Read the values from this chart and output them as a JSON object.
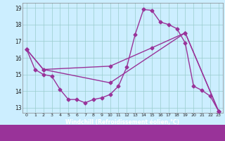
{
  "xlabel": "Windchill (Refroidissement éolien,°C)",
  "bg_color": "#cceeff",
  "line_color": "#993399",
  "grid_color": "#99cccc",
  "xlim": [
    -0.5,
    23.5
  ],
  "ylim": [
    12.7,
    19.3
  ],
  "yticks": [
    13,
    14,
    15,
    16,
    17,
    18,
    19
  ],
  "xticks": [
    0,
    1,
    2,
    3,
    4,
    5,
    6,
    7,
    8,
    9,
    10,
    11,
    12,
    13,
    14,
    15,
    16,
    17,
    18,
    19,
    20,
    21,
    22,
    23
  ],
  "line1_x": [
    0,
    1,
    2,
    3,
    4,
    5,
    6,
    7,
    8,
    9,
    10,
    11,
    12,
    13,
    14,
    15,
    16,
    17,
    18,
    19,
    20,
    21,
    22,
    23
  ],
  "line1_y": [
    16.5,
    15.3,
    15.0,
    14.9,
    14.1,
    13.5,
    13.5,
    13.3,
    13.5,
    13.6,
    13.8,
    14.3,
    15.45,
    17.4,
    18.9,
    18.85,
    18.15,
    18.0,
    17.75,
    16.9,
    14.3,
    14.05,
    13.7,
    12.8
  ],
  "line2_x": [
    0,
    2,
    10,
    19,
    23
  ],
  "line2_y": [
    16.5,
    15.3,
    14.5,
    17.5,
    12.8
  ],
  "line3_x": [
    0,
    2,
    10,
    15,
    19,
    23
  ],
  "line3_y": [
    16.5,
    15.3,
    15.5,
    16.6,
    17.5,
    12.8
  ],
  "marker": "D",
  "markersize": 2.5,
  "linewidth": 1.0
}
